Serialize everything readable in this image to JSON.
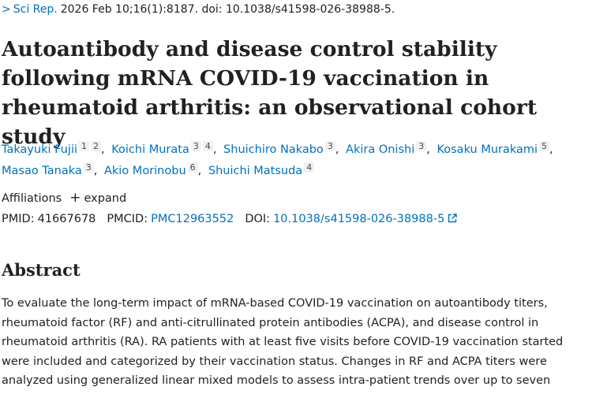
{
  "citation": {
    "journal": "Sci Rep.",
    "details": "2026 Feb 10;16(1):8187. doi: 10.1038/s41598-026-38988-5."
  },
  "title": "Autoantibody and disease control stability following mRNA COVID-19 vaccination in rheumatoid arthritis: an observational cohort study",
  "authors": [
    {
      "name": "Takayuki Fujii",
      "affs": [
        "1",
        "2"
      ]
    },
    {
      "name": "Koichi Murata",
      "affs": [
        "3",
        "4"
      ]
    },
    {
      "name": "Shuichiro Nakabo",
      "affs": [
        "3"
      ]
    },
    {
      "name": "Akira Onishi",
      "affs": [
        "3"
      ]
    },
    {
      "name": "Kosaku Murakami",
      "affs": [
        "5"
      ]
    },
    {
      "name": "Masao Tanaka",
      "affs": [
        "3"
      ]
    },
    {
      "name": "Akio Morinobu",
      "affs": [
        "6"
      ]
    },
    {
      "name": "Shuichi Matsuda",
      "affs": [
        "4"
      ]
    }
  ],
  "affiliations": {
    "label": "Affiliations",
    "toggle_icon": "plus-icon",
    "toggle_label": "expand"
  },
  "identifiers": {
    "pmid_label": "PMID:",
    "pmid": "41667678",
    "pmcid_label": "PMCID:",
    "pmcid": "PMC12963552",
    "doi_label": "DOI:",
    "doi": "10.1038/s41598-026-38988-5",
    "doi_icon": "external-link-icon"
  },
  "abstract": {
    "heading": "Abstract",
    "lines": [
      "To evaluate the long-term impact of mRNA-based COVID-19 vaccination on autoantibody titers,",
      "rheumatoid factor (RF) and anti-citrullinated protein antibodies (ACPA), and disease control in",
      "rheumatoid arthritis (RA). RA patients with at least five visits before COVID-19 vaccination started",
      "were included and categorized by their vaccination status. Changes in RF and ACPA titers were",
      "analyzed using generalized linear mixed models to assess intra-patient trends over up to seven"
    ]
  },
  "colors": {
    "link": "#0071bc",
    "text": "#212121",
    "badge_bg": "#f1f1f1"
  }
}
